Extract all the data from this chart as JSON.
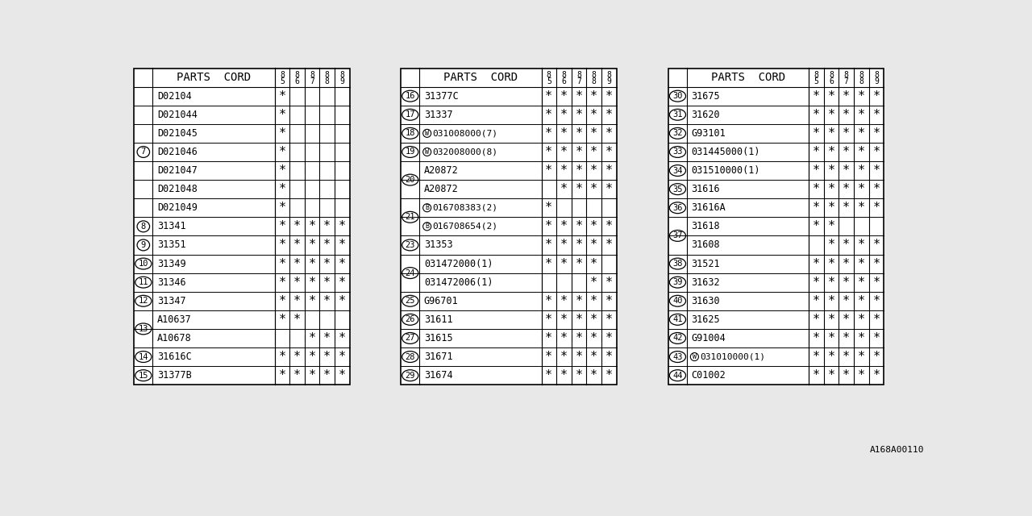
{
  "bg_color": "#e8e8e8",
  "col_headers": [
    "8\n5",
    "8\n6",
    "8\n7",
    "8\n8",
    "8\n9"
  ],
  "tables": [
    {
      "rows": [
        {
          "num": "7",
          "parts": [
            {
              "code": "D02104",
              "stars": [
                true,
                false,
                false,
                false,
                false
              ],
              "prefix": ""
            },
            {
              "code": "D021044",
              "stars": [
                true,
                false,
                false,
                false,
                false
              ],
              "prefix": ""
            },
            {
              "code": "D021045",
              "stars": [
                true,
                false,
                false,
                false,
                false
              ],
              "prefix": ""
            },
            {
              "code": "D021046",
              "stars": [
                true,
                false,
                false,
                false,
                false
              ],
              "prefix": ""
            },
            {
              "code": "D021047",
              "stars": [
                true,
                false,
                false,
                false,
                false
              ],
              "prefix": ""
            },
            {
              "code": "D021048",
              "stars": [
                true,
                false,
                false,
                false,
                false
              ],
              "prefix": ""
            },
            {
              "code": "D021049",
              "stars": [
                true,
                false,
                false,
                false,
                false
              ],
              "prefix": ""
            }
          ]
        },
        {
          "num": "8",
          "parts": [
            {
              "code": "31341",
              "stars": [
                true,
                true,
                true,
                true,
                true
              ],
              "prefix": ""
            }
          ]
        },
        {
          "num": "9",
          "parts": [
            {
              "code": "31351",
              "stars": [
                true,
                true,
                true,
                true,
                true
              ],
              "prefix": ""
            }
          ]
        },
        {
          "num": "10",
          "parts": [
            {
              "code": "31349",
              "stars": [
                true,
                true,
                true,
                true,
                true
              ],
              "prefix": ""
            }
          ]
        },
        {
          "num": "11",
          "parts": [
            {
              "code": "31346",
              "stars": [
                true,
                true,
                true,
                true,
                true
              ],
              "prefix": ""
            }
          ]
        },
        {
          "num": "12",
          "parts": [
            {
              "code": "31347",
              "stars": [
                true,
                true,
                true,
                true,
                true
              ],
              "prefix": ""
            }
          ]
        },
        {
          "num": "13",
          "parts": [
            {
              "code": "A10637",
              "stars": [
                true,
                true,
                false,
                false,
                false
              ],
              "prefix": ""
            },
            {
              "code": "A10678",
              "stars": [
                false,
                false,
                true,
                true,
                true
              ],
              "prefix": ""
            }
          ]
        },
        {
          "num": "14",
          "parts": [
            {
              "code": "31616C",
              "stars": [
                true,
                true,
                true,
                true,
                true
              ],
              "prefix": ""
            }
          ]
        },
        {
          "num": "15",
          "parts": [
            {
              "code": "31377B",
              "stars": [
                true,
                true,
                true,
                true,
                true
              ],
              "prefix": ""
            }
          ]
        }
      ]
    },
    {
      "rows": [
        {
          "num": "16",
          "parts": [
            {
              "code": "31377C",
              "stars": [
                true,
                true,
                true,
                true,
                true
              ],
              "prefix": ""
            }
          ]
        },
        {
          "num": "17",
          "parts": [
            {
              "code": "31337",
              "stars": [
                true,
                true,
                true,
                true,
                true
              ],
              "prefix": ""
            }
          ]
        },
        {
          "num": "18",
          "parts": [
            {
              "code": "031008000(7)",
              "stars": [
                true,
                true,
                true,
                true,
                true
              ],
              "prefix": "W"
            }
          ]
        },
        {
          "num": "19",
          "parts": [
            {
              "code": "032008000(8)",
              "stars": [
                true,
                true,
                true,
                true,
                true
              ],
              "prefix": "W"
            }
          ]
        },
        {
          "num": "20",
          "parts": [
            {
              "code": "A20872",
              "stars": [
                true,
                true,
                true,
                true,
                true
              ],
              "prefix": ""
            },
            {
              "code": "A20872",
              "stars": [
                false,
                true,
                true,
                true,
                true
              ],
              "prefix": ""
            }
          ]
        },
        {
          "num": "21",
          "parts": [
            {
              "code": "016708383(2)",
              "stars": [
                true,
                false,
                false,
                false,
                false
              ],
              "prefix": "B"
            },
            {
              "code": "016708654(2)",
              "stars": [
                true,
                true,
                true,
                true,
                true
              ],
              "prefix": "B"
            }
          ]
        },
        {
          "num": "23",
          "parts": [
            {
              "code": "31353",
              "stars": [
                true,
                true,
                true,
                true,
                true
              ],
              "prefix": ""
            }
          ]
        },
        {
          "num": "24",
          "parts": [
            {
              "code": "031472000(1)",
              "stars": [
                true,
                true,
                true,
                true,
                false
              ],
              "prefix": ""
            },
            {
              "code": "031472006(1)",
              "stars": [
                false,
                false,
                false,
                true,
                true
              ],
              "prefix": ""
            }
          ]
        },
        {
          "num": "25",
          "parts": [
            {
              "code": "G96701",
              "stars": [
                true,
                true,
                true,
                true,
                true
              ],
              "prefix": ""
            }
          ]
        },
        {
          "num": "26",
          "parts": [
            {
              "code": "31611",
              "stars": [
                true,
                true,
                true,
                true,
                true
              ],
              "prefix": ""
            }
          ]
        },
        {
          "num": "27",
          "parts": [
            {
              "code": "31615",
              "stars": [
                true,
                true,
                true,
                true,
                true
              ],
              "prefix": ""
            }
          ]
        },
        {
          "num": "28",
          "parts": [
            {
              "code": "31671",
              "stars": [
                true,
                true,
                true,
                true,
                true
              ],
              "prefix": ""
            }
          ]
        },
        {
          "num": "29",
          "parts": [
            {
              "code": "31674",
              "stars": [
                true,
                true,
                true,
                true,
                true
              ],
              "prefix": ""
            }
          ]
        }
      ]
    },
    {
      "rows": [
        {
          "num": "30",
          "parts": [
            {
              "code": "31675",
              "stars": [
                true,
                true,
                true,
                true,
                true
              ],
              "prefix": ""
            }
          ]
        },
        {
          "num": "31",
          "parts": [
            {
              "code": "31620",
              "stars": [
                true,
                true,
                true,
                true,
                true
              ],
              "prefix": ""
            }
          ]
        },
        {
          "num": "32",
          "parts": [
            {
              "code": "G93101",
              "stars": [
                true,
                true,
                true,
                true,
                true
              ],
              "prefix": ""
            }
          ]
        },
        {
          "num": "33",
          "parts": [
            {
              "code": "031445000(1)",
              "stars": [
                true,
                true,
                true,
                true,
                true
              ],
              "prefix": ""
            }
          ]
        },
        {
          "num": "34",
          "parts": [
            {
              "code": "031510000(1)",
              "stars": [
                true,
                true,
                true,
                true,
                true
              ],
              "prefix": ""
            }
          ]
        },
        {
          "num": "35",
          "parts": [
            {
              "code": "31616",
              "stars": [
                true,
                true,
                true,
                true,
                true
              ],
              "prefix": ""
            }
          ]
        },
        {
          "num": "36",
          "parts": [
            {
              "code": "31616A",
              "stars": [
                true,
                true,
                true,
                true,
                true
              ],
              "prefix": ""
            }
          ]
        },
        {
          "num": "37",
          "parts": [
            {
              "code": "31618",
              "stars": [
                true,
                true,
                false,
                false,
                false
              ],
              "prefix": ""
            },
            {
              "code": "31608",
              "stars": [
                false,
                true,
                true,
                true,
                true
              ],
              "prefix": ""
            }
          ]
        },
        {
          "num": "38",
          "parts": [
            {
              "code": "31521",
              "stars": [
                true,
                true,
                true,
                true,
                true
              ],
              "prefix": ""
            }
          ]
        },
        {
          "num": "39",
          "parts": [
            {
              "code": "31632",
              "stars": [
                true,
                true,
                true,
                true,
                true
              ],
              "prefix": ""
            }
          ]
        },
        {
          "num": "40",
          "parts": [
            {
              "code": "31630",
              "stars": [
                true,
                true,
                true,
                true,
                true
              ],
              "prefix": ""
            }
          ]
        },
        {
          "num": "41",
          "parts": [
            {
              "code": "31625",
              "stars": [
                true,
                true,
                true,
                true,
                true
              ],
              "prefix": ""
            }
          ]
        },
        {
          "num": "42",
          "parts": [
            {
              "code": "G91004",
              "stars": [
                true,
                true,
                true,
                true,
                true
              ],
              "prefix": ""
            }
          ]
        },
        {
          "num": "43",
          "parts": [
            {
              "code": "031010000(1)",
              "stars": [
                true,
                true,
                true,
                true,
                true
              ],
              "prefix": "W"
            }
          ]
        },
        {
          "num": "44",
          "parts": [
            {
              "code": "C01002",
              "stars": [
                true,
                true,
                true,
                true,
                true
              ],
              "prefix": ""
            }
          ]
        }
      ]
    }
  ],
  "watermark": "A168A00110"
}
